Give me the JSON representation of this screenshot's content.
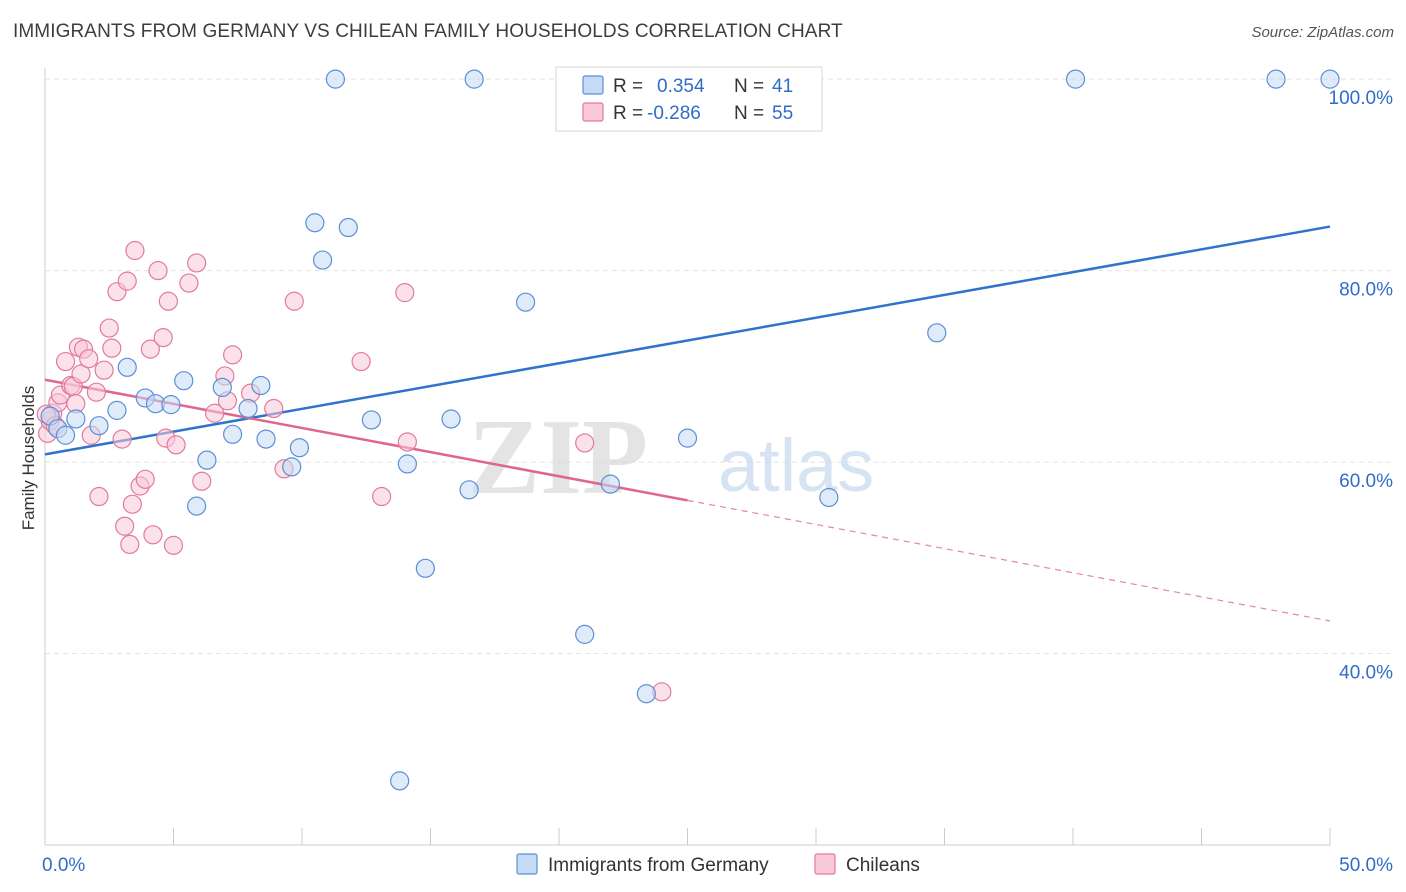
{
  "title": "IMMIGRANTS FROM GERMANY VS CHILEAN FAMILY HOUSEHOLDS CORRELATION CHART",
  "source": "Source: ZipAtlas.com",
  "watermark": {
    "zip": "ZIP",
    "atlas": "atlas"
  },
  "colors": {
    "blue": "#5b8fd6",
    "blue_fill": "#c5daf4",
    "blue_line": "#2f73cc",
    "pink": "#e27a9f",
    "pink_fill": "#f8c9d8",
    "pink_line": "#e06590",
    "value_text": "#2f6dc9",
    "grid": "#e2e2e2",
    "axis": "#cccccc"
  },
  "legend": {
    "rows": [
      {
        "r_label": "R =",
        "r_value": "0.354",
        "n_label": "N =",
        "n_value": "41",
        "series": "blue"
      },
      {
        "r_label": "R =",
        "r_value": "-0.286",
        "n_label": "N =",
        "n_value": "55",
        "series": "pink"
      }
    ]
  },
  "chart_data": {
    "type": "scatter",
    "title": "IMMIGRANTS FROM GERMANY VS CHILEAN FAMILY HOUSEHOLDS CORRELATION CHART",
    "xlabel": "",
    "ylabel": "Family Households",
    "xlim": [
      0,
      50
    ],
    "ylim": [
      20,
      102
    ],
    "x_tick_labels": [
      {
        "value": 0,
        "label": "0.0%"
      },
      {
        "value": 50,
        "label": "50.0%"
      }
    ],
    "x_minor_ticks": [
      0,
      5,
      10,
      15,
      20,
      25,
      30,
      35,
      40,
      45,
      50
    ],
    "y_ticks": [
      {
        "value": 100,
        "label": "100.0%"
      },
      {
        "value": 80,
        "label": "80.0%"
      },
      {
        "value": 60,
        "label": "60.0%"
      },
      {
        "value": 40,
        "label": "40.0%"
      }
    ],
    "grid": true,
    "legend_position": "bottom-center",
    "series": [
      {
        "name": "Immigrants from Germany",
        "color": "blue",
        "r": 0.354,
        "n": 41,
        "trend": {
          "x0": 0,
          "y0": 60.8,
          "x1": 50,
          "y1": 84.6
        },
        "points": [
          [
            0.2,
            64.8
          ],
          [
            0.5,
            63.5
          ],
          [
            0.8,
            62.8
          ],
          [
            1.2,
            64.5
          ],
          [
            2.1,
            63.8
          ],
          [
            2.8,
            65.4
          ],
          [
            3.2,
            69.9
          ],
          [
            3.9,
            66.7
          ],
          [
            4.3,
            66.1
          ],
          [
            4.9,
            66.0
          ],
          [
            5.4,
            68.5
          ],
          [
            5.9,
            55.4
          ],
          [
            6.3,
            60.2
          ],
          [
            6.9,
            67.8
          ],
          [
            7.3,
            62.9
          ],
          [
            7.9,
            65.6
          ],
          [
            8.4,
            68.0
          ],
          [
            8.6,
            62.4
          ],
          [
            9.6,
            59.5
          ],
          [
            9.9,
            61.5
          ],
          [
            10.5,
            85.0
          ],
          [
            10.8,
            81.1
          ],
          [
            11.3,
            100.0
          ],
          [
            11.8,
            84.5
          ],
          [
            12.7,
            64.4
          ],
          [
            13.8,
            26.7
          ],
          [
            14.1,
            59.8
          ],
          [
            14.8,
            48.9
          ],
          [
            15.8,
            64.5
          ],
          [
            16.5,
            57.1
          ],
          [
            16.7,
            100.0
          ],
          [
            18.7,
            76.7
          ],
          [
            21.0,
            42.0
          ],
          [
            22.0,
            57.7
          ],
          [
            23.4,
            35.8
          ],
          [
            25.0,
            62.5
          ],
          [
            30.5,
            56.3
          ],
          [
            34.7,
            73.5
          ],
          [
            40.1,
            100.0
          ],
          [
            47.9,
            100.0
          ],
          [
            50.0,
            100.0
          ]
        ]
      },
      {
        "name": "Chileans",
        "color": "pink",
        "r": -0.286,
        "n": 55,
        "trend": {
          "x0": 0,
          "y0": 68.6,
          "x1": 25.0,
          "y1": 56.0,
          "dash_to_x": 50,
          "dash_to_y": 43.4
        },
        "points": [
          [
            0.1,
            63.0
          ],
          [
            0.2,
            64.3
          ],
          [
            0.3,
            65.1
          ],
          [
            0.5,
            66.2
          ],
          [
            0.6,
            67.0
          ],
          [
            0.8,
            70.5
          ],
          [
            1.0,
            68.0
          ],
          [
            1.1,
            67.9
          ],
          [
            1.2,
            66.1
          ],
          [
            1.3,
            72.0
          ],
          [
            1.4,
            69.2
          ],
          [
            1.5,
            71.8
          ],
          [
            1.7,
            70.8
          ],
          [
            1.8,
            62.8
          ],
          [
            2.0,
            67.3
          ],
          [
            2.1,
            56.4
          ],
          [
            2.3,
            69.6
          ],
          [
            2.5,
            74.0
          ],
          [
            2.6,
            71.9
          ],
          [
            2.8,
            77.8
          ],
          [
            3.0,
            62.4
          ],
          [
            3.1,
            53.3
          ],
          [
            3.2,
            78.9
          ],
          [
            3.3,
            51.4
          ],
          [
            3.4,
            55.6
          ],
          [
            3.5,
            82.1
          ],
          [
            3.7,
            57.5
          ],
          [
            3.9,
            58.2
          ],
          [
            4.1,
            71.8
          ],
          [
            4.2,
            52.4
          ],
          [
            4.4,
            80.0
          ],
          [
            4.6,
            73.0
          ],
          [
            4.7,
            62.5
          ],
          [
            4.8,
            76.8
          ],
          [
            5.0,
            51.3
          ],
          [
            5.1,
            61.8
          ],
          [
            5.6,
            78.7
          ],
          [
            5.9,
            80.8
          ],
          [
            6.1,
            58.0
          ],
          [
            6.6,
            65.1
          ],
          [
            7.0,
            69.0
          ],
          [
            7.1,
            66.4
          ],
          [
            7.3,
            71.2
          ],
          [
            8.0,
            67.2
          ],
          [
            8.9,
            65.6
          ],
          [
            9.3,
            59.3
          ],
          [
            9.7,
            76.8
          ],
          [
            12.3,
            70.5
          ],
          [
            13.1,
            56.4
          ],
          [
            14.0,
            77.7
          ],
          [
            14.1,
            62.1
          ],
          [
            21.0,
            62.0
          ],
          [
            24.0,
            36.0
          ],
          [
            0.05,
            65.0
          ],
          [
            0.4,
            63.8
          ]
        ]
      }
    ]
  }
}
